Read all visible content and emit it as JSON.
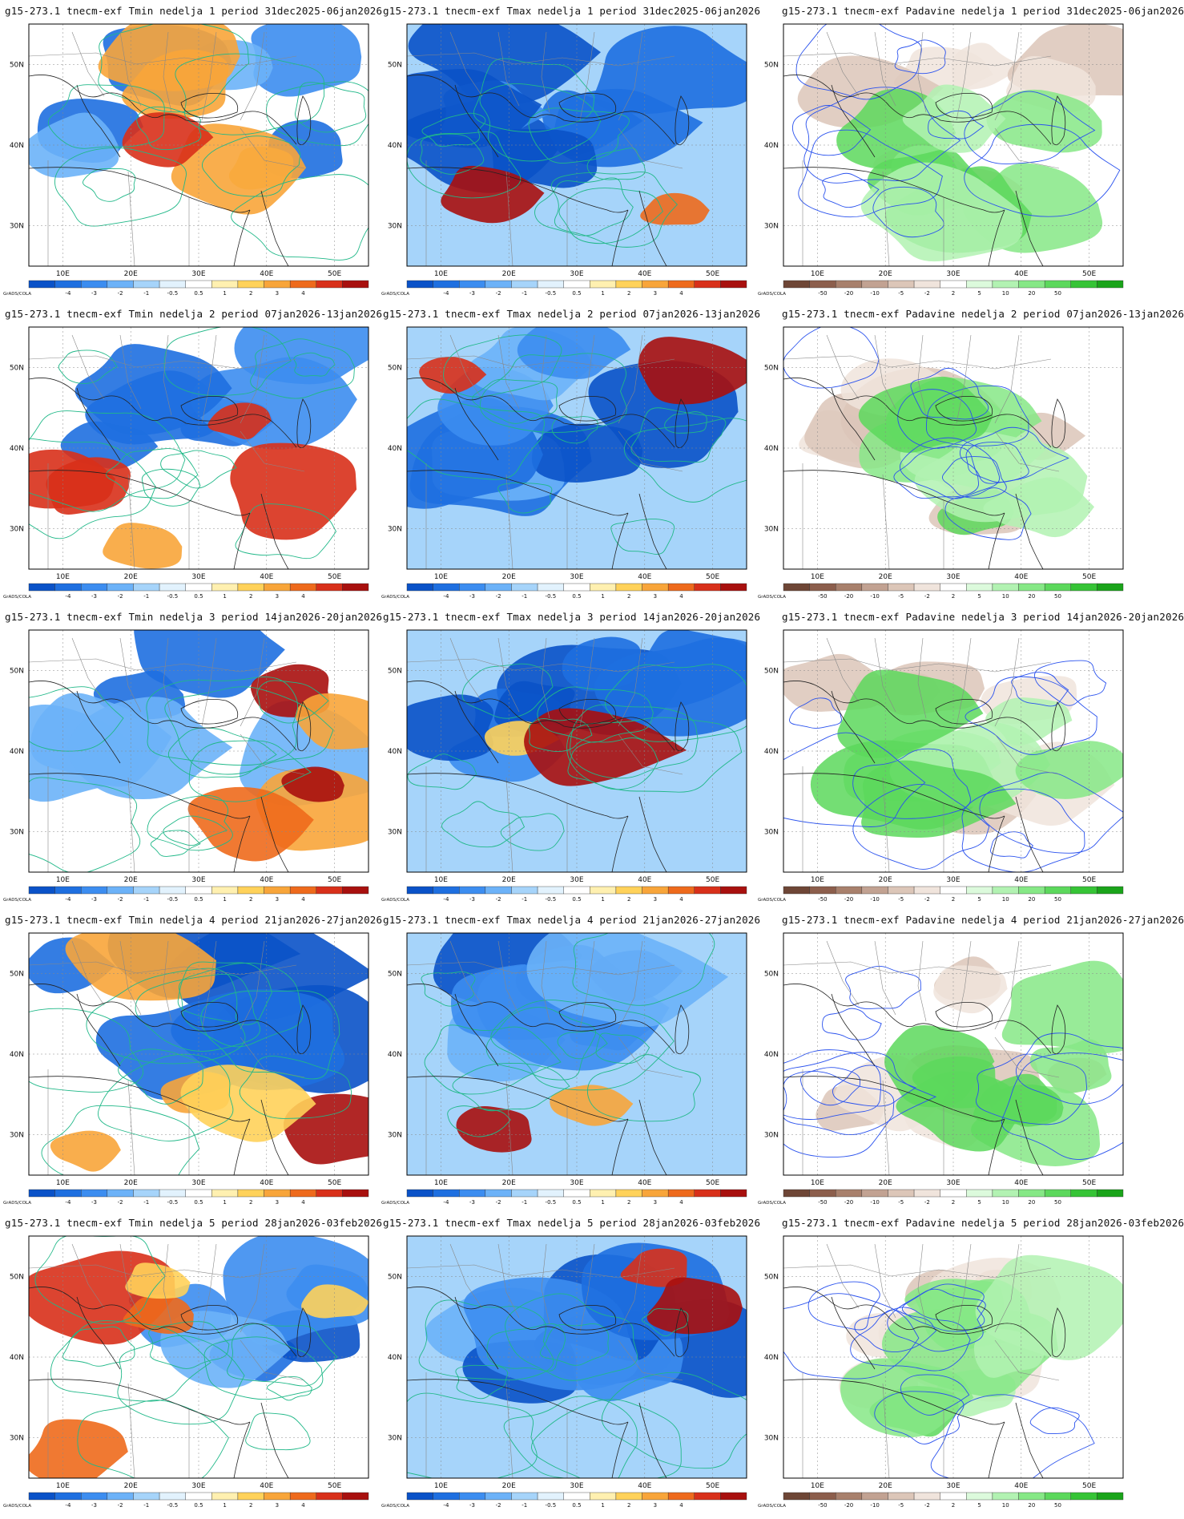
{
  "lat_ticks": [
    "50N",
    "40N",
    "30N"
  ],
  "lon_ticks": [
    "10E",
    "20E",
    "30E",
    "40E",
    "50E"
  ],
  "credit": "GrADS/COLA",
  "legends": {
    "temperature": {
      "labels": [
        "-4",
        "-3",
        "-2",
        "-1",
        "-0.5",
        "0.5",
        "1",
        "2",
        "3",
        "4"
      ],
      "colors": [
        "#0a52c8",
        "#1e6fe0",
        "#3c8df0",
        "#6cb2f8",
        "#a6d4fa",
        "#e2f2fd",
        "#ffffff",
        "#fff0b0",
        "#ffd25a",
        "#f8a53a",
        "#ee6a1c",
        "#d8301a",
        "#a8100e"
      ]
    },
    "precipitation": {
      "labels": [
        "-50",
        "-20",
        "-10",
        "-5",
        "-2",
        "2",
        "5",
        "10",
        "20",
        "50"
      ],
      "colors": [
        "#6e4636",
        "#8c5e4c",
        "#a8806c",
        "#c2a292",
        "#dcc6b8",
        "#f0e4dc",
        "#ffffff",
        "#dcfadc",
        "#b2f2b2",
        "#86e886",
        "#5cd85c",
        "#36c436",
        "#1aa41a"
      ]
    }
  },
  "contour_colors": {
    "temperature": "#20b888",
    "precipitation": "#2a52ee",
    "coast": "#222222",
    "borders": "#888888"
  },
  "panels": [
    {
      "title": "g15-273.1 tnecm-exf Tmin nedelja 1 period 31dec2025-06jan2026",
      "variable": "Tmin",
      "week": 1,
      "period": "31dec2025-06jan2026",
      "legend": "temperature"
    },
    {
      "title": "g15-273.1 tnecm-exf Tmax nedelja 1 period 31dec2025-06jan2026",
      "variable": "Tmax",
      "week": 1,
      "period": "31dec2025-06jan2026",
      "legend": "temperature"
    },
    {
      "title": "g15-273.1 tnecm-exf Padavine nedelja 1 period 31dec2025-06jan2026",
      "variable": "Padavine",
      "week": 1,
      "period": "31dec2025-06jan2026",
      "legend": "precipitation"
    },
    {
      "title": "g15-273.1 tnecm-exf Tmin nedelja 2 period 07jan2026-13jan2026",
      "variable": "Tmin",
      "week": 2,
      "period": "07jan2026-13jan2026",
      "legend": "temperature"
    },
    {
      "title": "g15-273.1 tnecm-exf Tmax nedelja 2 period 07jan2026-13jan2026",
      "variable": "Tmax",
      "week": 2,
      "period": "07jan2026-13jan2026",
      "legend": "temperature"
    },
    {
      "title": "g15-273.1 tnecm-exf Padavine nedelja 2 period 07jan2026-13jan2026",
      "variable": "Padavine",
      "week": 2,
      "period": "07jan2026-13jan2026",
      "legend": "precipitation"
    },
    {
      "title": "g15-273.1 tnecm-exf Tmin nedelja 3 period 14jan2026-20jan2026",
      "variable": "Tmin",
      "week": 3,
      "period": "14jan2026-20jan2026",
      "legend": "temperature"
    },
    {
      "title": "g15-273.1 tnecm-exf Tmax nedelja 3 period 14jan2026-20jan2026",
      "variable": "Tmax",
      "week": 3,
      "period": "14jan2026-20jan2026",
      "legend": "temperature"
    },
    {
      "title": "g15-273.1 tnecm-exf Padavine nedelja 3 period 14jan2026-20jan2026",
      "variable": "Padavine",
      "week": 3,
      "period": "14jan2026-20jan2026",
      "legend": "precipitation"
    },
    {
      "title": "g15-273.1 tnecm-exf Tmin nedelja 4 period 21jan2026-27jan2026",
      "variable": "Tmin",
      "week": 4,
      "period": "21jan2026-27jan2026",
      "legend": "temperature"
    },
    {
      "title": "g15-273.1 tnecm-exf Tmax nedelja 4 period 21jan2026-27jan2026",
      "variable": "Tmax",
      "week": 4,
      "period": "21jan2026-27jan2026",
      "legend": "temperature"
    },
    {
      "title": "g15-273.1 tnecm-exf Padavine nedelja 4 period 21jan2026-27jan2026",
      "variable": "Padavine",
      "week": 4,
      "period": "21jan2026-27jan2026",
      "legend": "precipitation"
    },
    {
      "title": "g15-273.1 tnecm-exf Tmin nedelja 5 period 28jan2026-03feb2026",
      "variable": "Tmin",
      "week": 5,
      "period": "28jan2026-03feb2026",
      "legend": "temperature"
    },
    {
      "title": "g15-273.1 tnecm-exf Tmax nedelja 5 period 28jan2026-03feb2026",
      "variable": "Tmax",
      "week": 5,
      "period": "28jan2026-03feb2026",
      "legend": "temperature"
    },
    {
      "title": "g15-273.1 tnecm-exf Padavine nedelja 5 period 28jan2026-03feb2026",
      "variable": "Padavine",
      "week": 5,
      "period": "28jan2026-03feb2026",
      "legend": "precipitation"
    }
  ]
}
